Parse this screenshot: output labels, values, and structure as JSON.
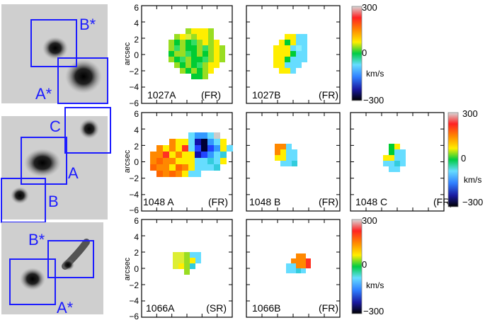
{
  "figure": {
    "axis_unit_label": "arcsec",
    "y_tick_labels": [
      "6",
      "4",
      "2",
      "0",
      "−2",
      "−4",
      "−6"
    ],
    "colorbar": {
      "max_label": "300",
      "mid_label": "0",
      "min_label": "−300",
      "unit_label": "km/s",
      "stops": [
        "#000000",
        "#0000cc",
        "#3399ff",
        "#66ddff",
        "#00cc44",
        "#ffee00",
        "#ff8800",
        "#ff2222",
        "#cccccc"
      ]
    },
    "rows": [
      {
        "thumbnail_boxes": [
          {
            "label": "B*"
          },
          {
            "label": "A*"
          }
        ],
        "panels": [
          {
            "name": "1027A",
            "mode": "(FR)"
          },
          {
            "name": "1027B",
            "mode": "(FR)"
          }
        ]
      },
      {
        "thumbnail_boxes": [
          {
            "label": "C"
          },
          {
            "label": "A"
          },
          {
            "label": "B"
          }
        ],
        "panels": [
          {
            "name": "1048 A",
            "mode": "(FR)"
          },
          {
            "name": "1048 B",
            "mode": "(FR)"
          },
          {
            "name": "1048 C",
            "mode": "(FR)"
          }
        ]
      },
      {
        "thumbnail_boxes": [
          {
            "label": "B*"
          },
          {
            "label": "A*"
          }
        ],
        "panels": [
          {
            "name": "1066A",
            "mode": "(SR)"
          },
          {
            "name": "1066B",
            "mode": "(FR)"
          }
        ]
      }
    ]
  }
}
